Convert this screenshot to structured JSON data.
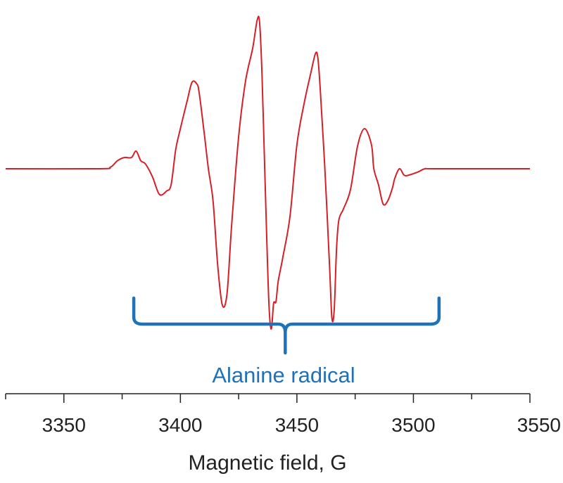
{
  "chart_data": {
    "type": "line",
    "title": "",
    "xlabel": "Magnetic field, G",
    "ylabel": "",
    "xlim": [
      3325,
      3550
    ],
    "ylim": [
      -1.0,
      1.0
    ],
    "xticks": [
      3350,
      3400,
      3450,
      3500,
      3550
    ],
    "grid": false,
    "legend": "none",
    "series": [
      {
        "color": "#d42027",
        "x": [
          3325,
          3365,
          3370,
          3373,
          3376,
          3379,
          3381,
          3383,
          3385,
          3388,
          3391,
          3394,
          3396,
          3398,
          3400,
          3403,
          3405,
          3407,
          3408,
          3410,
          3412,
          3414,
          3416,
          3418,
          3420,
          3422,
          3425,
          3428,
          3431,
          3433,
          3434,
          3435,
          3436,
          3437,
          3438,
          3439,
          3440,
          3441,
          3442,
          3444,
          3447,
          3450,
          3453,
          3456,
          3458,
          3459,
          3460,
          3462,
          3464,
          3465,
          3466,
          3467,
          3468,
          3470,
          3473,
          3476,
          3479,
          3482,
          3483,
          3485,
          3487,
          3489,
          3491,
          3492,
          3494,
          3496,
          3498,
          3502,
          3505,
          3510,
          3550
        ],
        "y": [
          0.0,
          0.0,
          0.01,
          0.05,
          0.07,
          0.07,
          0.11,
          0.05,
          0.03,
          -0.05,
          -0.16,
          -0.14,
          -0.1,
          0.12,
          0.25,
          0.43,
          0.54,
          0.53,
          0.48,
          0.25,
          0.0,
          -0.2,
          -0.6,
          -0.85,
          -0.78,
          -0.35,
          0.2,
          0.55,
          0.75,
          0.93,
          0.91,
          0.6,
          0.1,
          -0.4,
          -0.85,
          -1.0,
          -0.84,
          -0.83,
          -0.7,
          -0.55,
          -0.3,
          0.15,
          0.4,
          0.6,
          0.72,
          0.69,
          0.5,
          0.0,
          -0.6,
          -0.93,
          -0.88,
          -0.5,
          -0.32,
          -0.25,
          -0.13,
          0.14,
          0.25,
          0.15,
          0.0,
          -0.1,
          -0.22,
          -0.2,
          -0.12,
          -0.06,
          0.0,
          -0.04,
          -0.04,
          -0.02,
          0.0,
          0.0,
          0.0
        ]
      }
    ],
    "annotations": [
      {
        "text": "Alanine radical",
        "x_start": 3380,
        "x_end": 3511,
        "x_center": 3445,
        "color": "#1f72b8"
      }
    ]
  }
}
